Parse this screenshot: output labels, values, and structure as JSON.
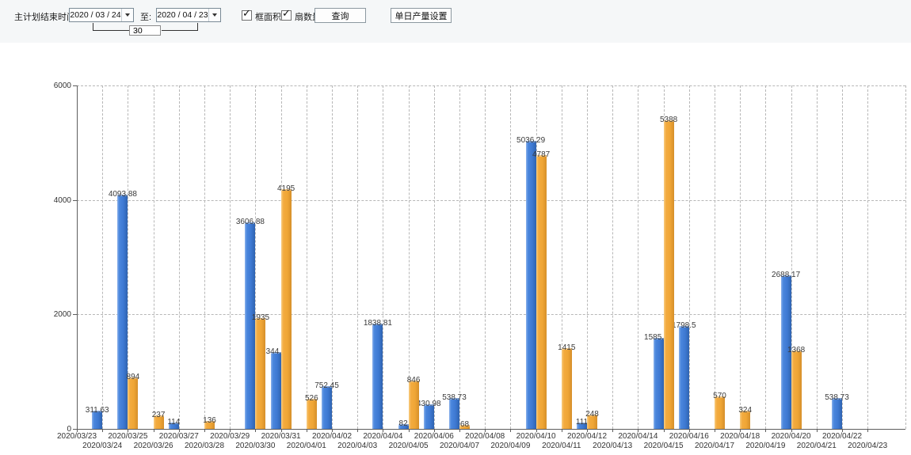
{
  "toolbar": {
    "plan_end_label": "主计划结束时间:",
    "start_date": "2020 / 03 / 24",
    "to_label": "至:",
    "end_date": "2020 / 04 / 23",
    "interval_days": "30",
    "area_checkbox_label": "框面积",
    "fans_checkbox_label": "扇数量",
    "query_button": "查询",
    "daily_output_button": "单日产量设置"
  },
  "legend": [
    {
      "label": "框面积",
      "color": "#3f7ed6"
    },
    {
      "label": "扇数量",
      "color": "#f0a73a"
    }
  ],
  "chart_data": {
    "type": "bar",
    "title": "",
    "xlabel": "",
    "ylabel": "",
    "ylim": [
      0,
      6000
    ],
    "yticks": [
      0,
      2000,
      4000,
      6000
    ],
    "grid": "dashed",
    "legend_position": "top-center",
    "value_labels": true,
    "categories": [
      "2020/03/23",
      "2020/03/24",
      "2020/03/25",
      "2020/03/26",
      "2020/03/27",
      "2020/03/28",
      "2020/03/29",
      "2020/03/30",
      "2020/03/31",
      "2020/04/01",
      "2020/04/02",
      "2020/04/03",
      "2020/04/04",
      "2020/04/05",
      "2020/04/06",
      "2020/04/07",
      "2020/04/08",
      "2020/04/09",
      "2020/04/10",
      "2020/04/11",
      "2020/04/12",
      "2020/04/13",
      "2020/04/14",
      "2020/04/15",
      "2020/04/16",
      "2020/04/17",
      "2020/04/18",
      "2020/04/19",
      "2020/04/20",
      "2020/04/21",
      "2020/04/22",
      "2020/04/23"
    ],
    "series": [
      {
        "name": "框面积",
        "color": "#3f7ed6",
        "values": [
          null,
          311.63,
          4093.88,
          null,
          114,
          null,
          null,
          3606.88,
          1344.95,
          null,
          752.45,
          null,
          1838.81,
          82,
          430.98,
          538.73,
          null,
          null,
          5036.29,
          null,
          111,
          null,
          null,
          1585.96,
          1798.5,
          null,
          null,
          null,
          2688.17,
          null,
          538.73,
          null
        ]
      },
      {
        "name": "扇数量",
        "color": "#f0a73a",
        "values": [
          null,
          null,
          894,
          237,
          null,
          136,
          null,
          1935,
          4195,
          526,
          null,
          null,
          null,
          846,
          null,
          68,
          null,
          null,
          4787,
          1415,
          248,
          null,
          null,
          5388,
          null,
          570,
          324,
          null,
          1368,
          null,
          null,
          null
        ]
      }
    ]
  }
}
